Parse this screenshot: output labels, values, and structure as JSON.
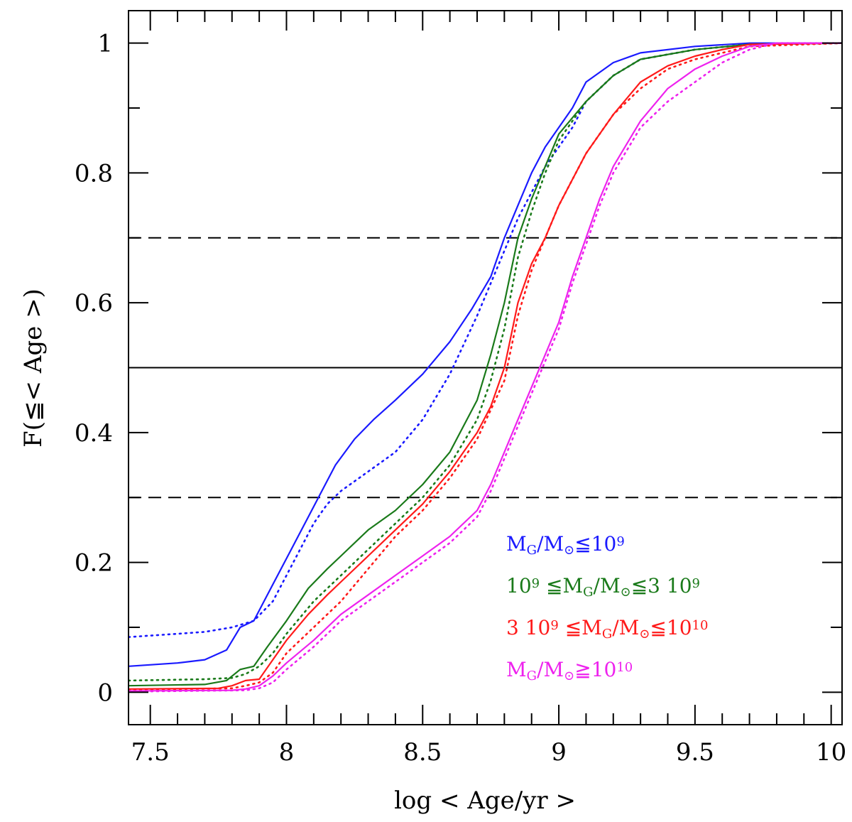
{
  "chart_data": {
    "type": "line",
    "xlabel": "log < Age/yr >",
    "ylabel": "F(≦< Age >)",
    "xlim": [
      7.42,
      10.04
    ],
    "ylim": [
      -0.05,
      1.05
    ],
    "x_ticks": [
      7.5,
      8,
      8.5,
      9,
      9.5,
      10
    ],
    "x_tick_labels": [
      "7.5",
      "8",
      "8.5",
      "9",
      "9.5",
      "10"
    ],
    "y_ticks": [
      0,
      0.2,
      0.4,
      0.6,
      0.8,
      1
    ],
    "y_tick_labels": [
      "0",
      "0.2",
      "0.4",
      "0.6",
      "0.8",
      "1"
    ],
    "grid": false,
    "legend_position": "bottom-right",
    "reference_lines": [
      {
        "y": 0.5,
        "style": "solid"
      },
      {
        "y": 0.3,
        "style": "dashed"
      },
      {
        "y": 0.7,
        "style": "dashed"
      }
    ],
    "series": [
      {
        "name": "M_G/M_⊙≦10⁹",
        "legend_label": {
          "parts": [
            [
              "M",
              ""
            ],
            [
              "G",
              "sub"
            ],
            [
              "/M",
              ""
            ],
            [
              "⊙",
              "sub"
            ],
            [
              "≦10",
              ""
            ],
            [
              "9",
              "sup"
            ]
          ]
        },
        "color": "#1a1aff",
        "solid": [
          [
            7.42,
            0.04
          ],
          [
            7.6,
            0.045
          ],
          [
            7.7,
            0.05
          ],
          [
            7.78,
            0.065
          ],
          [
            7.83,
            0.1
          ],
          [
            7.88,
            0.11
          ],
          [
            7.93,
            0.15
          ],
          [
            7.98,
            0.19
          ],
          [
            8.03,
            0.23
          ],
          [
            8.08,
            0.27
          ],
          [
            8.13,
            0.31
          ],
          [
            8.18,
            0.35
          ],
          [
            8.25,
            0.39
          ],
          [
            8.32,
            0.42
          ],
          [
            8.4,
            0.45
          ],
          [
            8.5,
            0.49
          ],
          [
            8.6,
            0.54
          ],
          [
            8.68,
            0.59
          ],
          [
            8.75,
            0.64
          ],
          [
            8.8,
            0.7
          ],
          [
            8.85,
            0.75
          ],
          [
            8.9,
            0.8
          ],
          [
            8.95,
            0.84
          ],
          [
            9.05,
            0.9
          ],
          [
            9.1,
            0.94
          ],
          [
            9.2,
            0.97
          ],
          [
            9.3,
            0.985
          ],
          [
            9.5,
            0.995
          ],
          [
            9.7,
            1.0
          ],
          [
            10.04,
            1.0
          ]
        ],
        "dotted": [
          [
            7.42,
            0.085
          ],
          [
            7.6,
            0.09
          ],
          [
            7.7,
            0.093
          ],
          [
            7.8,
            0.1
          ],
          [
            7.88,
            0.11
          ],
          [
            7.95,
            0.14
          ],
          [
            8.0,
            0.18
          ],
          [
            8.05,
            0.22
          ],
          [
            8.1,
            0.26
          ],
          [
            8.15,
            0.29
          ],
          [
            8.2,
            0.31
          ],
          [
            8.3,
            0.34
          ],
          [
            8.4,
            0.37
          ],
          [
            8.5,
            0.42
          ],
          [
            8.6,
            0.49
          ],
          [
            8.7,
            0.58
          ],
          [
            8.8,
            0.68
          ],
          [
            8.85,
            0.73
          ],
          [
            8.9,
            0.77
          ],
          [
            8.95,
            0.81
          ],
          [
            9.05,
            0.87
          ],
          [
            9.1,
            0.91
          ],
          [
            9.2,
            0.95
          ],
          [
            9.3,
            0.975
          ],
          [
            9.5,
            0.99
          ],
          [
            9.7,
            0.998
          ],
          [
            10.04,
            1.0
          ]
        ]
      },
      {
        "name": "10⁹ ≦M_G/M_⊙≦3 10⁹",
        "legend_label": {
          "parts": [
            [
              "10",
              ""
            ],
            [
              "9",
              "sup"
            ],
            [
              " ≦M",
              ""
            ],
            [
              "G",
              "sub"
            ],
            [
              "/M",
              ""
            ],
            [
              "⊙",
              "sub"
            ],
            [
              "≦3 10",
              ""
            ],
            [
              "9",
              "sup"
            ]
          ]
        },
        "color": "#1a7a1a",
        "solid": [
          [
            7.42,
            0.01
          ],
          [
            7.7,
            0.012
          ],
          [
            7.78,
            0.018
          ],
          [
            7.83,
            0.035
          ],
          [
            7.88,
            0.04
          ],
          [
            7.93,
            0.07
          ],
          [
            8.0,
            0.11
          ],
          [
            8.08,
            0.16
          ],
          [
            8.15,
            0.19
          ],
          [
            8.2,
            0.21
          ],
          [
            8.3,
            0.25
          ],
          [
            8.4,
            0.28
          ],
          [
            8.5,
            0.32
          ],
          [
            8.6,
            0.37
          ],
          [
            8.65,
            0.41
          ],
          [
            8.7,
            0.45
          ],
          [
            8.75,
            0.52
          ],
          [
            8.8,
            0.6
          ],
          [
            8.85,
            0.7
          ],
          [
            8.9,
            0.76
          ],
          [
            8.95,
            0.81
          ],
          [
            9.0,
            0.86
          ],
          [
            9.1,
            0.91
          ],
          [
            9.2,
            0.95
          ],
          [
            9.3,
            0.975
          ],
          [
            9.5,
            0.99
          ],
          [
            9.7,
            0.998
          ],
          [
            10.04,
            1.0
          ]
        ],
        "dotted": [
          [
            7.42,
            0.018
          ],
          [
            7.7,
            0.02
          ],
          [
            7.8,
            0.022
          ],
          [
            7.85,
            0.028
          ],
          [
            7.9,
            0.04
          ],
          [
            7.95,
            0.06
          ],
          [
            8.0,
            0.09
          ],
          [
            8.1,
            0.14
          ],
          [
            8.2,
            0.18
          ],
          [
            8.3,
            0.22
          ],
          [
            8.4,
            0.26
          ],
          [
            8.5,
            0.3
          ],
          [
            8.6,
            0.35
          ],
          [
            8.7,
            0.42
          ],
          [
            8.75,
            0.48
          ],
          [
            8.8,
            0.56
          ],
          [
            8.85,
            0.67
          ],
          [
            8.9,
            0.74
          ],
          [
            8.95,
            0.8
          ],
          [
            9.0,
            0.85
          ],
          [
            9.1,
            0.91
          ],
          [
            9.2,
            0.95
          ],
          [
            9.3,
            0.975
          ],
          [
            9.5,
            0.99
          ],
          [
            9.7,
            0.998
          ],
          [
            10.04,
            1.0
          ]
        ]
      },
      {
        "name": "3 10⁹ ≦M_G/M_⊙≦10¹⁰",
        "legend_label": {
          "parts": [
            [
              "3 10",
              ""
            ],
            [
              "9",
              "sup"
            ],
            [
              " ≦M",
              ""
            ],
            [
              "G",
              "sub"
            ],
            [
              "/M",
              ""
            ],
            [
              "⊙",
              "sub"
            ],
            [
              "≦10",
              ""
            ],
            [
              "10",
              "sup"
            ]
          ]
        },
        "color": "#ff1a1a",
        "solid": [
          [
            7.42,
            0.005
          ],
          [
            7.75,
            0.006
          ],
          [
            7.8,
            0.01
          ],
          [
            7.85,
            0.018
          ],
          [
            7.9,
            0.02
          ],
          [
            7.95,
            0.05
          ],
          [
            8.0,
            0.08
          ],
          [
            8.08,
            0.12
          ],
          [
            8.15,
            0.15
          ],
          [
            8.2,
            0.17
          ],
          [
            8.3,
            0.21
          ],
          [
            8.4,
            0.25
          ],
          [
            8.5,
            0.29
          ],
          [
            8.6,
            0.34
          ],
          [
            8.7,
            0.4
          ],
          [
            8.75,
            0.44
          ],
          [
            8.8,
            0.5
          ],
          [
            8.85,
            0.6
          ],
          [
            8.9,
            0.66
          ],
          [
            8.95,
            0.7
          ],
          [
            9.0,
            0.75
          ],
          [
            9.1,
            0.83
          ],
          [
            9.2,
            0.89
          ],
          [
            9.3,
            0.94
          ],
          [
            9.4,
            0.965
          ],
          [
            9.5,
            0.98
          ],
          [
            9.6,
            0.99
          ],
          [
            9.7,
            0.998
          ],
          [
            10.04,
            1.0
          ]
        ],
        "dotted": [
          [
            7.42,
            0.004
          ],
          [
            7.8,
            0.006
          ],
          [
            7.85,
            0.01
          ],
          [
            7.9,
            0.015
          ],
          [
            7.95,
            0.03
          ],
          [
            8.0,
            0.06
          ],
          [
            8.1,
            0.1
          ],
          [
            8.2,
            0.14
          ],
          [
            8.3,
            0.19
          ],
          [
            8.4,
            0.24
          ],
          [
            8.5,
            0.28
          ],
          [
            8.6,
            0.33
          ],
          [
            8.7,
            0.39
          ],
          [
            8.8,
            0.48
          ],
          [
            8.85,
            0.58
          ],
          [
            8.9,
            0.65
          ],
          [
            8.95,
            0.7
          ],
          [
            9.0,
            0.75
          ],
          [
            9.1,
            0.83
          ],
          [
            9.2,
            0.89
          ],
          [
            9.3,
            0.93
          ],
          [
            9.4,
            0.96
          ],
          [
            9.5,
            0.975
          ],
          [
            9.6,
            0.985
          ],
          [
            9.7,
            0.995
          ],
          [
            10.04,
            1.0
          ]
        ]
      },
      {
        "name": "M_G/M_⊙≧10¹⁰",
        "legend_label": {
          "parts": [
            [
              "M",
              ""
            ],
            [
              "G",
              "sub"
            ],
            [
              "/M",
              ""
            ],
            [
              "⊙",
              "sub"
            ],
            [
              "≧10",
              ""
            ],
            [
              "10",
              "sup"
            ]
          ]
        },
        "color": "#ee22ee",
        "solid": [
          [
            7.42,
            0.002
          ],
          [
            7.8,
            0.003
          ],
          [
            7.85,
            0.005
          ],
          [
            7.9,
            0.01
          ],
          [
            7.95,
            0.025
          ],
          [
            8.0,
            0.045
          ],
          [
            8.1,
            0.08
          ],
          [
            8.2,
            0.12
          ],
          [
            8.3,
            0.15
          ],
          [
            8.4,
            0.18
          ],
          [
            8.5,
            0.21
          ],
          [
            8.6,
            0.24
          ],
          [
            8.7,
            0.28
          ],
          [
            8.75,
            0.32
          ],
          [
            8.8,
            0.37
          ],
          [
            8.85,
            0.42
          ],
          [
            8.9,
            0.47
          ],
          [
            8.95,
            0.52
          ],
          [
            9.0,
            0.57
          ],
          [
            9.05,
            0.64
          ],
          [
            9.1,
            0.7
          ],
          [
            9.15,
            0.76
          ],
          [
            9.2,
            0.81
          ],
          [
            9.3,
            0.88
          ],
          [
            9.4,
            0.93
          ],
          [
            9.5,
            0.96
          ],
          [
            9.6,
            0.98
          ],
          [
            9.7,
            0.995
          ],
          [
            9.8,
            1.0
          ],
          [
            10.04,
            1.0
          ]
        ],
        "dotted": [
          [
            7.42,
            0.001
          ],
          [
            7.85,
            0.003
          ],
          [
            7.9,
            0.006
          ],
          [
            7.95,
            0.015
          ],
          [
            8.0,
            0.035
          ],
          [
            8.1,
            0.07
          ],
          [
            8.2,
            0.11
          ],
          [
            8.3,
            0.14
          ],
          [
            8.4,
            0.17
          ],
          [
            8.5,
            0.2
          ],
          [
            8.6,
            0.23
          ],
          [
            8.7,
            0.27
          ],
          [
            8.75,
            0.31
          ],
          [
            8.8,
            0.36
          ],
          [
            8.85,
            0.41
          ],
          [
            8.9,
            0.46
          ],
          [
            8.95,
            0.51
          ],
          [
            9.0,
            0.56
          ],
          [
            9.05,
            0.63
          ],
          [
            9.1,
            0.69
          ],
          [
            9.15,
            0.75
          ],
          [
            9.2,
            0.8
          ],
          [
            9.3,
            0.87
          ],
          [
            9.4,
            0.91
          ],
          [
            9.5,
            0.94
          ],
          [
            9.6,
            0.97
          ],
          [
            9.7,
            0.99
          ],
          [
            9.8,
            1.0
          ],
          [
            10.04,
            1.0
          ]
        ]
      }
    ]
  }
}
